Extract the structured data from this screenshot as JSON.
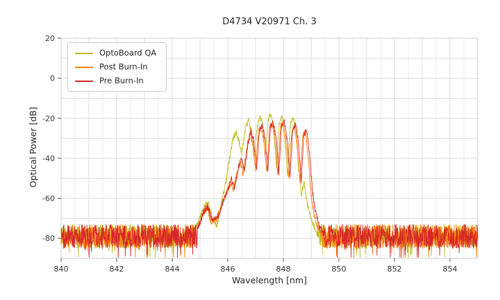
{
  "chart_data": {
    "type": "line",
    "title": "D4734 V20971 Ch. 3",
    "xlabel": "Wavelength [nm]",
    "ylabel": "Optical Power [dB]",
    "xlim": [
      840,
      855
    ],
    "ylim": [
      -90,
      20
    ],
    "xticks": [
      840,
      842,
      844,
      846,
      848,
      850,
      852,
      854
    ],
    "yticks": [
      20,
      0,
      -20,
      -40,
      -60,
      -80
    ],
    "grid": true,
    "grid_major_color": "#dcdcdc",
    "grid_minor_color": "#ececec",
    "frame_color": "#cccccc",
    "legend_position": "upper-left",
    "noise_floor": {
      "mean": -79,
      "amplitude": 6,
      "spike_chance": 0.08,
      "spike_depth": 9
    },
    "series": [
      {
        "name": "OptoBoard QA",
        "color": "#bcbd22",
        "envelope": [
          [
            844.8,
            -76
          ],
          [
            845.0,
            -70
          ],
          [
            845.15,
            -64
          ],
          [
            845.3,
            -62
          ],
          [
            845.45,
            -70
          ],
          [
            845.6,
            -74
          ],
          [
            845.75,
            -64
          ],
          [
            845.9,
            -54
          ],
          [
            846.0,
            -46
          ],
          [
            846.1,
            -37
          ],
          [
            846.2,
            -30
          ],
          [
            846.3,
            -27
          ],
          [
            846.4,
            -31
          ],
          [
            846.5,
            -38
          ],
          [
            846.55,
            -33
          ],
          [
            846.65,
            -24
          ],
          [
            846.75,
            -21
          ],
          [
            846.85,
            -27
          ],
          [
            846.95,
            -40
          ],
          [
            847.05,
            -26
          ],
          [
            847.15,
            -19
          ],
          [
            847.25,
            -22
          ],
          [
            847.35,
            -38
          ],
          [
            847.45,
            -21
          ],
          [
            847.55,
            -18
          ],
          [
            847.65,
            -25
          ],
          [
            847.75,
            -44
          ],
          [
            847.85,
            -22
          ],
          [
            847.95,
            -20
          ],
          [
            848.05,
            -30
          ],
          [
            848.15,
            -48
          ],
          [
            848.25,
            -23
          ],
          [
            848.35,
            -20
          ],
          [
            848.45,
            -26
          ],
          [
            848.55,
            -45
          ],
          [
            848.65,
            -58
          ],
          [
            848.75,
            -52
          ],
          [
            848.85,
            -62
          ],
          [
            849.0,
            -70
          ],
          [
            849.15,
            -76
          ],
          [
            849.3,
            -79
          ]
        ]
      },
      {
        "name": "Post Burn-In",
        "color": "#ff7f0e",
        "envelope": [
          [
            844.9,
            -76
          ],
          [
            845.1,
            -68
          ],
          [
            845.25,
            -65
          ],
          [
            845.4,
            -72
          ],
          [
            845.6,
            -70
          ],
          [
            845.8,
            -63
          ],
          [
            845.95,
            -58
          ],
          [
            846.1,
            -52
          ],
          [
            846.2,
            -56
          ],
          [
            846.3,
            -48
          ],
          [
            846.45,
            -42
          ],
          [
            846.55,
            -48
          ],
          [
            846.7,
            -34
          ],
          [
            846.8,
            -27
          ],
          [
            846.9,
            -33
          ],
          [
            847.0,
            -46
          ],
          [
            847.1,
            -27
          ],
          [
            847.2,
            -24
          ],
          [
            847.3,
            -31
          ],
          [
            847.4,
            -47
          ],
          [
            847.5,
            -25
          ],
          [
            847.6,
            -23
          ],
          [
            847.7,
            -30
          ],
          [
            847.8,
            -48
          ],
          [
            847.9,
            -24
          ],
          [
            848.0,
            -23
          ],
          [
            848.1,
            -32
          ],
          [
            848.2,
            -50
          ],
          [
            848.3,
            -26
          ],
          [
            848.4,
            -24
          ],
          [
            848.5,
            -33
          ],
          [
            848.6,
            -52
          ],
          [
            848.7,
            -29
          ],
          [
            848.8,
            -27
          ],
          [
            848.9,
            -40
          ],
          [
            849.0,
            -58
          ],
          [
            849.1,
            -68
          ],
          [
            849.25,
            -75
          ],
          [
            849.4,
            -79
          ]
        ]
      },
      {
        "name": "Pre Burn-In",
        "color": "#d62728",
        "envelope": [
          [
            844.9,
            -76
          ],
          [
            845.12,
            -67
          ],
          [
            845.28,
            -64
          ],
          [
            845.45,
            -71
          ],
          [
            845.65,
            -69
          ],
          [
            845.85,
            -61
          ],
          [
            846.0,
            -56
          ],
          [
            846.12,
            -50
          ],
          [
            846.24,
            -55
          ],
          [
            846.36,
            -46
          ],
          [
            846.5,
            -40
          ],
          [
            846.6,
            -46
          ],
          [
            846.74,
            -32
          ],
          [
            846.84,
            -26
          ],
          [
            846.94,
            -32
          ],
          [
            847.04,
            -45
          ],
          [
            847.14,
            -26
          ],
          [
            847.24,
            -23
          ],
          [
            847.34,
            -30
          ],
          [
            847.44,
            -46
          ],
          [
            847.54,
            -24
          ],
          [
            847.64,
            -22
          ],
          [
            847.74,
            -29
          ],
          [
            847.84,
            -47
          ],
          [
            847.94,
            -23
          ],
          [
            848.04,
            -22
          ],
          [
            848.14,
            -31
          ],
          [
            848.24,
            -49
          ],
          [
            848.34,
            -25
          ],
          [
            848.44,
            -23
          ],
          [
            848.54,
            -32
          ],
          [
            848.64,
            -51
          ],
          [
            848.74,
            -28
          ],
          [
            848.84,
            -26
          ],
          [
            848.94,
            -38
          ],
          [
            849.04,
            -55
          ],
          [
            849.14,
            -66
          ],
          [
            849.3,
            -74
          ],
          [
            849.45,
            -79
          ]
        ]
      }
    ]
  }
}
